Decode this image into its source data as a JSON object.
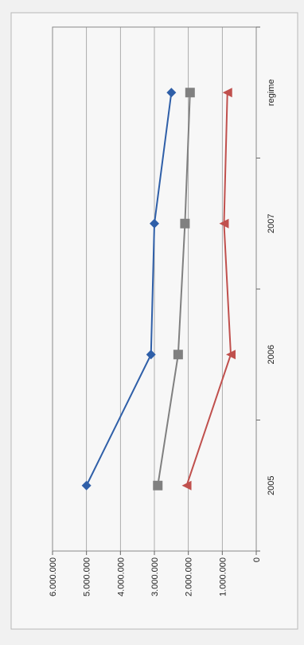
{
  "chart_data": {
    "type": "line",
    "orientation": "rotated-90",
    "categories": [
      "2005",
      "2006",
      "2007",
      "regime"
    ],
    "ylim": [
      0,
      6000000
    ],
    "yticks": [
      {
        "value": 0,
        "label": "0"
      },
      {
        "value": 1000000,
        "label": "1.000.000"
      },
      {
        "value": 2000000,
        "label": "2.000.000"
      },
      {
        "value": 3000000,
        "label": "3.000.000"
      },
      {
        "value": 4000000,
        "label": "4.000.000"
      },
      {
        "value": 5000000,
        "label": "5.000.000"
      },
      {
        "value": 6000000,
        "label": "6.000.000"
      }
    ],
    "grid": true,
    "series": [
      {
        "color": "#2f5fa8",
        "marker": "diamond",
        "values": [
          5000000,
          3100000,
          3000000,
          2500000
        ]
      },
      {
        "color": "#808080",
        "marker": "square",
        "values": [
          2900000,
          2300000,
          2100000,
          1950000
        ]
      },
      {
        "color": "#c0504d",
        "marker": "triangle",
        "values": [
          2050000,
          750000,
          950000,
          850000
        ]
      }
    ]
  }
}
